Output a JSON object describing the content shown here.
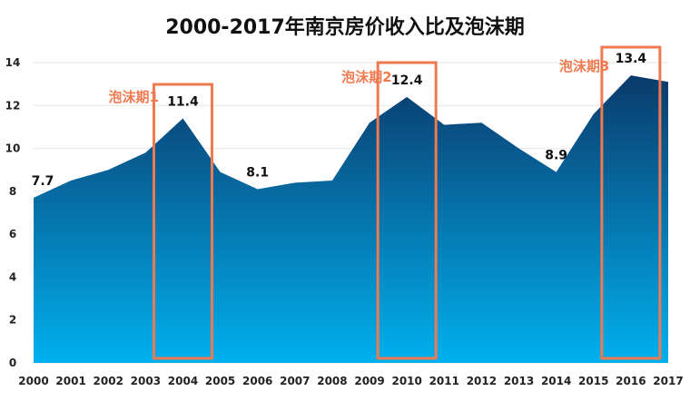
{
  "chart_data": {
    "type": "area",
    "title": "2000-2017年南京房价收入比及泡沫期",
    "xlabel": "",
    "ylabel": "",
    "categories": [
      "2000",
      "2001",
      "2002",
      "2003",
      "2004",
      "2005",
      "2006",
      "2007",
      "2008",
      "2009",
      "2010",
      "2011",
      "2012",
      "2013",
      "2014",
      "2015",
      "2016",
      "2017"
    ],
    "values": [
      7.7,
      8.5,
      9.0,
      9.8,
      11.4,
      8.9,
      8.1,
      8.4,
      8.5,
      11.2,
      12.4,
      11.1,
      11.2,
      10.0,
      8.9,
      11.6,
      13.4,
      13.1
    ],
    "ylim": [
      0,
      14
    ],
    "yticks": [
      "0",
      "2",
      "4",
      "6",
      "8",
      "10",
      "12",
      "14"
    ],
    "grid": true,
    "data_labels": [
      {
        "category": "2000",
        "text": "7.7"
      },
      {
        "category": "2004",
        "text": "11.4"
      },
      {
        "category": "2006",
        "text": "8.1"
      },
      {
        "category": "2010",
        "text": "12.4"
      },
      {
        "category": "2014",
        "text": "8.9"
      },
      {
        "category": "2016",
        "text": "13.4"
      }
    ],
    "annotations": [
      {
        "text": "泡沫期1",
        "highlight_category": "2004"
      },
      {
        "text": "泡沫期2",
        "highlight_category": "2010"
      },
      {
        "text": "泡沫期3",
        "highlight_category": "2016"
      }
    ],
    "colors": {
      "fill_top": "#0b3a6b",
      "fill_bottom": "#00b0ee",
      "highlight": "#f07a50",
      "grid": "#e6e6e6"
    }
  }
}
